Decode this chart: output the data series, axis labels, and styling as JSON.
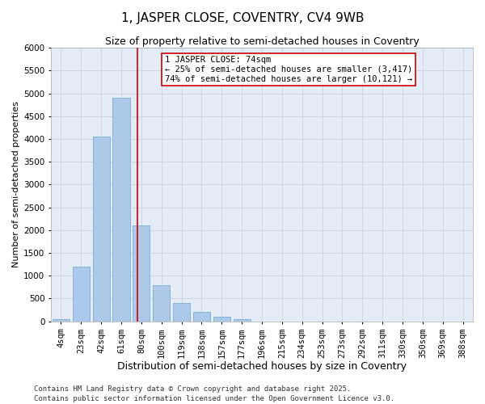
{
  "title": "1, JASPER CLOSE, COVENTRY, CV4 9WB",
  "subtitle": "Size of property relative to semi-detached houses in Coventry",
  "xlabel": "Distribution of semi-detached houses by size in Coventry",
  "ylabel": "Number of semi-detached properties",
  "categories": [
    "4sqm",
    "23sqm",
    "42sqm",
    "61sqm",
    "80sqm",
    "100sqm",
    "119sqm",
    "138sqm",
    "157sqm",
    "177sqm",
    "196sqm",
    "215sqm",
    "234sqm",
    "253sqm",
    "273sqm",
    "292sqm",
    "311sqm",
    "330sqm",
    "350sqm",
    "369sqm",
    "388sqm"
  ],
  "values": [
    50,
    1200,
    4050,
    4900,
    2100,
    800,
    400,
    200,
    100,
    50,
    0,
    0,
    0,
    0,
    0,
    0,
    0,
    0,
    0,
    0,
    0
  ],
  "bar_color": "#adc9ea",
  "bar_edge_color": "#7aadd4",
  "vline_color": "#cc0000",
  "vline_pos": 3.8,
  "annotation_text": "1 JASPER CLOSE: 74sqm\n← 25% of semi-detached houses are smaller (3,417)\n74% of semi-detached houses are larger (10,121) →",
  "annotation_box_color": "#ffffff",
  "annotation_box_edge": "#cc0000",
  "ylim": [
    0,
    6000
  ],
  "yticks": [
    0,
    500,
    1000,
    1500,
    2000,
    2500,
    3000,
    3500,
    4000,
    4500,
    5000,
    5500,
    6000
  ],
  "grid_color": "#c8d4e8",
  "bg_color": "#e4ecf7",
  "footer": "Contains HM Land Registry data © Crown copyright and database right 2025.\nContains public sector information licensed under the Open Government Licence v3.0.",
  "title_fontsize": 11,
  "subtitle_fontsize": 9,
  "xlabel_fontsize": 9,
  "ylabel_fontsize": 8,
  "tick_fontsize": 7.5,
  "annotation_fontsize": 7.5,
  "footer_fontsize": 6.5
}
